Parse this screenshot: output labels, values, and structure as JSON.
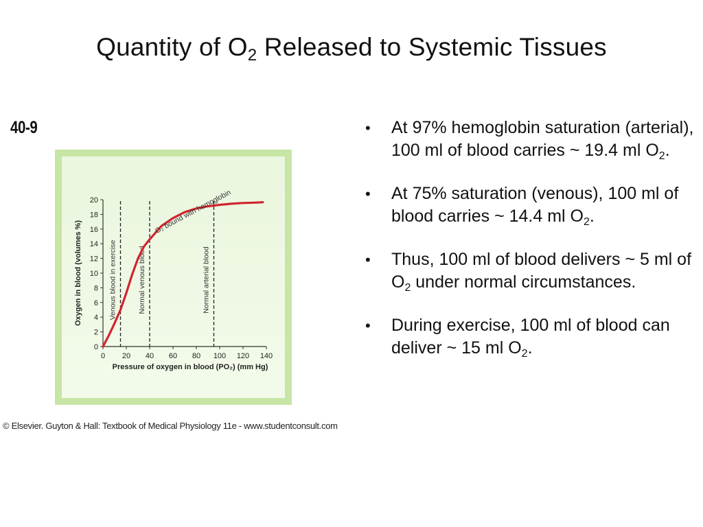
{
  "title": {
    "main": "Quantity of O",
    "sub": "2",
    "rest": " Released to Systemic Tissues"
  },
  "figure": {
    "number": "40-9",
    "copyright": "© Elsevier. Guyton & Hall: Textbook of Medical Physiology 11e - www.studentconsult.com"
  },
  "colors": {
    "curve": "#d1242f",
    "panel": "#c7e6a5",
    "text": "#111111"
  },
  "chart_data": {
    "type": "line",
    "xlabel": "Pressure of oxygen in blood (PO₂) (mm Hg)",
    "ylabel": "Oxygen in blood (volumes %)",
    "xlim": [
      0,
      140
    ],
    "ylim": [
      0,
      20
    ],
    "xticks": [
      "0",
      "20",
      "40",
      "60",
      "80",
      "100",
      "120",
      "140"
    ],
    "yticks": [
      "0",
      "2",
      "4",
      "6",
      "8",
      "10",
      "12",
      "14",
      "16",
      "18",
      "20"
    ],
    "series": [
      {
        "name": "O₂ bound with hemoglobin",
        "x": [
          0,
          5,
          10,
          15,
          20,
          25,
          30,
          35,
          40,
          50,
          60,
          70,
          80,
          90,
          100,
          110,
          120,
          130,
          137
        ],
        "y": [
          0,
          1.5,
          3.2,
          5.0,
          7.3,
          9.8,
          12.0,
          13.6,
          14.6,
          16.4,
          17.5,
          18.3,
          18.8,
          19.1,
          19.3,
          19.45,
          19.55,
          19.6,
          19.65
        ]
      }
    ],
    "annotations": [
      {
        "x": 15,
        "text": "Venous blood in exercise"
      },
      {
        "x": 40,
        "text": "Normal venous blood"
      },
      {
        "x": 95,
        "text": "Normal arterial blood"
      }
    ],
    "grid": false
  },
  "bullets": [
    {
      "parts": [
        {
          "t": "At 97% hemoglobin saturation (arterial), 100 ml of blood carries ~ 19.4 ml O"
        },
        {
          "s": "2"
        },
        {
          "t": "."
        }
      ]
    },
    {
      "parts": [
        {
          "t": "At 75% saturation (venous), 100 ml of blood carries ~ 14.4 ml O"
        },
        {
          "s": "2"
        },
        {
          "t": "."
        }
      ]
    },
    {
      "parts": [
        {
          "t": "Thus, 100 ml of blood delivers ~ 5 ml of O"
        },
        {
          "s": "2"
        },
        {
          "t": " under normal circumstances."
        }
      ]
    },
    {
      "parts": [
        {
          "t": "During exercise, 100 ml of blood can deliver ~ 15 ml O"
        },
        {
          "s": "2"
        },
        {
          "t": "."
        }
      ]
    }
  ]
}
